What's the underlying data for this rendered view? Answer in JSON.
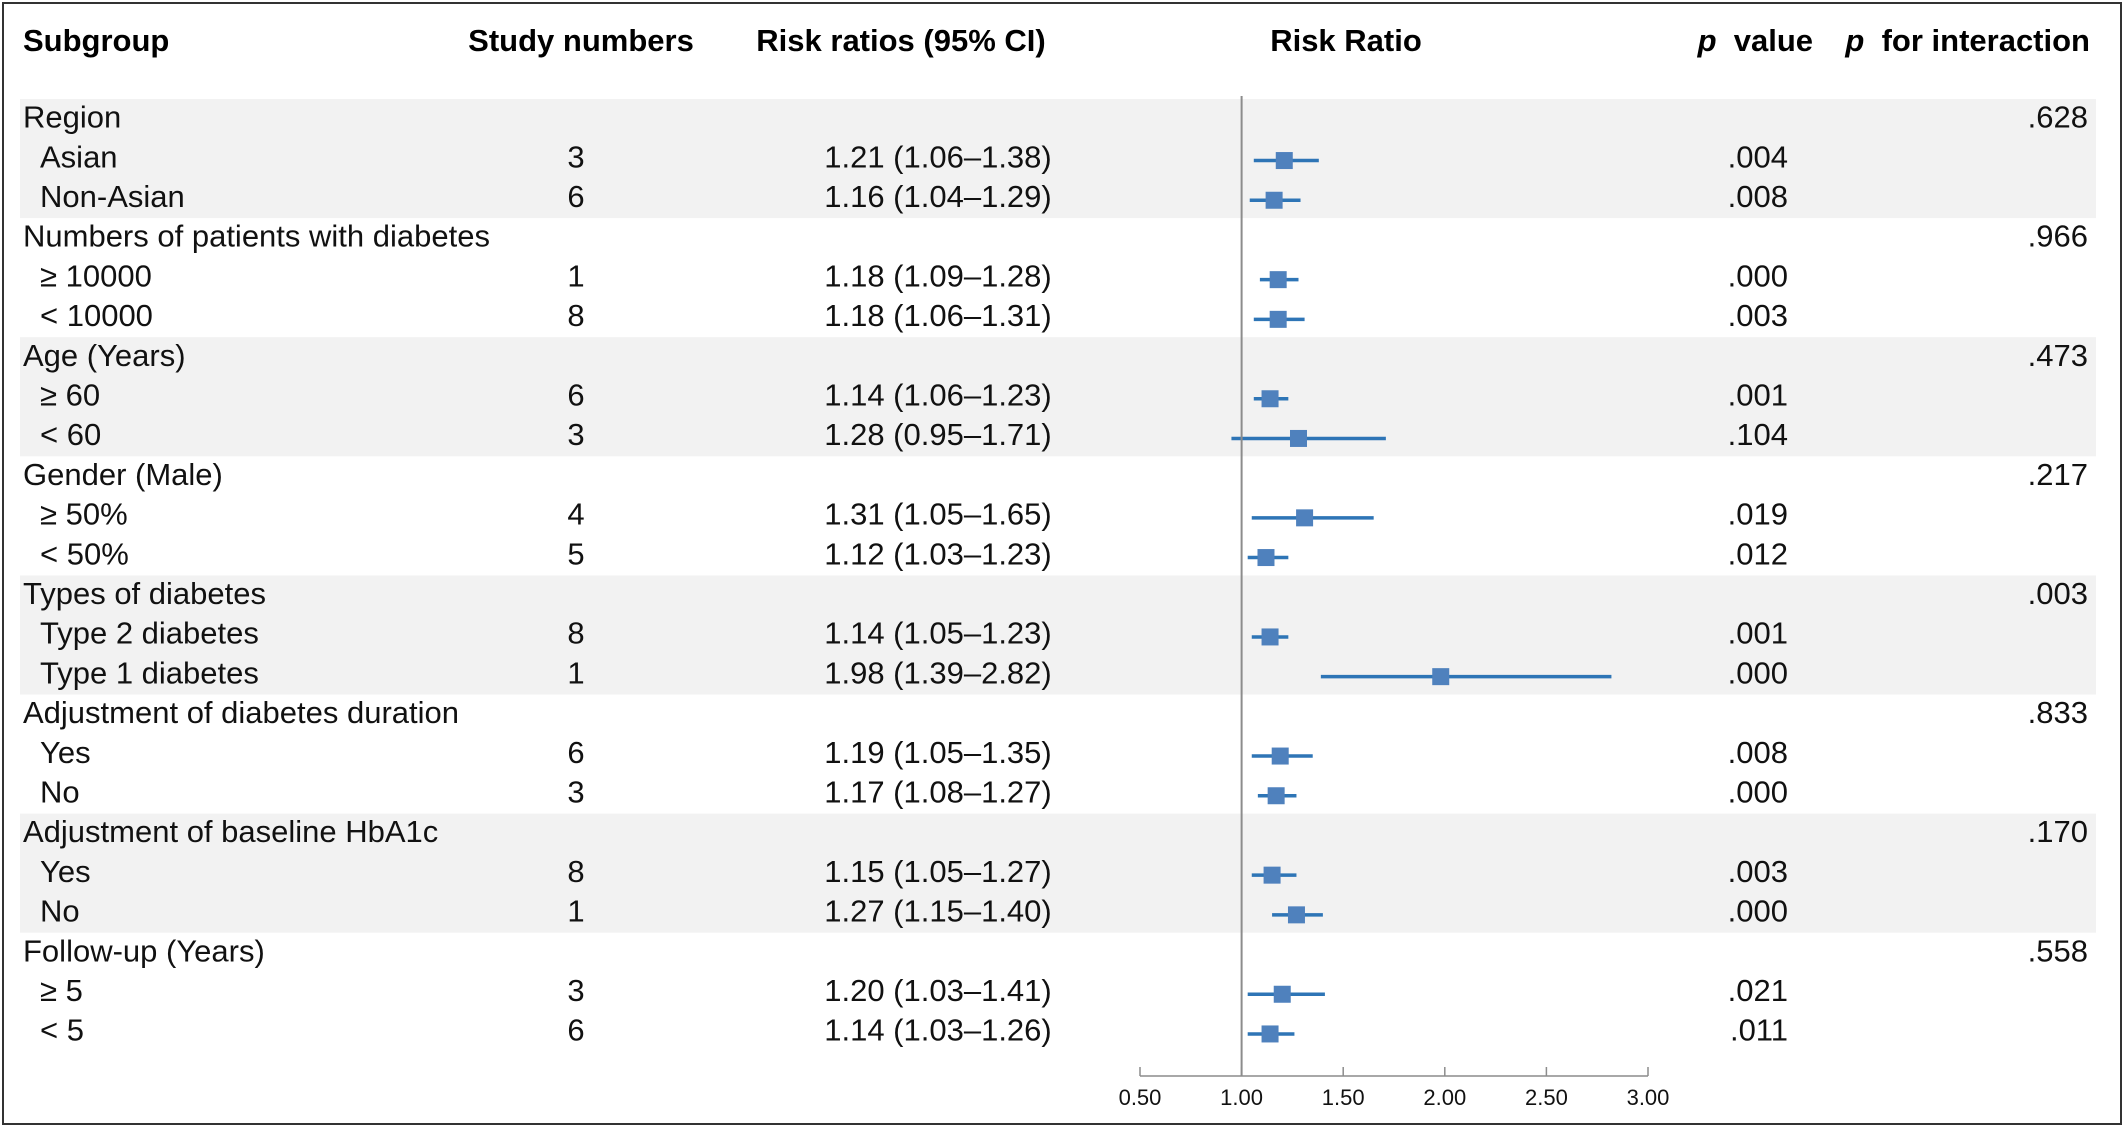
{
  "chart_data": {
    "type": "forest",
    "headers": {
      "subgroup": "Subgroup",
      "study_numbers": "Study numbers",
      "risk_ratios": "Risk ratios (95% CI)",
      "plot": "Risk Ratio",
      "p_value": "p value",
      "p_interaction": "p for interaction"
    },
    "x_axis": {
      "ticks": [
        "0.50",
        "1.00",
        "1.50",
        "2.00",
        "2.50",
        "3.00"
      ],
      "tick_values": [
        0.5,
        1.0,
        1.5,
        2.0,
        2.5,
        3.0
      ],
      "xlim": [
        0.5,
        3.0
      ],
      "reference_line": 1.0
    },
    "groups": [
      {
        "name": "Region",
        "p_interaction": ".628",
        "rows": [
          {
            "label": "Asian",
            "n": "3",
            "text": "1.21 (1.06–1.38)",
            "rr": 1.21,
            "lo": 1.06,
            "hi": 1.38,
            "p": ".004"
          },
          {
            "label": "Non-Asian",
            "n": "6",
            "text": "1.16 (1.04–1.29)",
            "rr": 1.16,
            "lo": 1.04,
            "hi": 1.29,
            "p": ".008"
          }
        ]
      },
      {
        "name": "Numbers of patients with diabetes",
        "p_interaction": ".966",
        "rows": [
          {
            "label": "≥ 10000",
            "n": "1",
            "text": "1.18 (1.09–1.28)",
            "rr": 1.18,
            "lo": 1.09,
            "hi": 1.28,
            "p": ".000"
          },
          {
            "label": "< 10000",
            "n": "8",
            "text": "1.18 (1.06–1.31)",
            "rr": 1.18,
            "lo": 1.06,
            "hi": 1.31,
            "p": ".003"
          }
        ]
      },
      {
        "name": "Age (Years)",
        "p_interaction": ".473",
        "rows": [
          {
            "label": "≥ 60",
            "n": "6",
            "text": "1.14 (1.06–1.23)",
            "rr": 1.14,
            "lo": 1.06,
            "hi": 1.23,
            "p": ".001"
          },
          {
            "label": "< 60",
            "n": "3",
            "text": "1.28 (0.95–1.71)",
            "rr": 1.28,
            "lo": 0.95,
            "hi": 1.71,
            "p": ".104"
          }
        ]
      },
      {
        "name": "Gender (Male)",
        "p_interaction": ".217",
        "rows": [
          {
            "label": "≥ 50%",
            "n": "4",
            "text": "1.31 (1.05–1.65)",
            "rr": 1.31,
            "lo": 1.05,
            "hi": 1.65,
            "p": ".019"
          },
          {
            "label": "< 50%",
            "n": "5",
            "text": "1.12 (1.03–1.23)",
            "rr": 1.12,
            "lo": 1.03,
            "hi": 1.23,
            "p": ".012"
          }
        ]
      },
      {
        "name": "Types of diabetes",
        "p_interaction": ".003",
        "rows": [
          {
            "label": "Type 2 diabetes",
            "n": "8",
            "text": "1.14 (1.05–1.23)",
            "rr": 1.14,
            "lo": 1.05,
            "hi": 1.23,
            "p": ".001"
          },
          {
            "label": "Type 1 diabetes",
            "n": "1",
            "text": "1.98 (1.39–2.82)",
            "rr": 1.98,
            "lo": 1.39,
            "hi": 2.82,
            "p": ".000"
          }
        ]
      },
      {
        "name": "Adjustment of diabetes duration",
        "p_interaction": ".833",
        "rows": [
          {
            "label": "Yes",
            "n": "6",
            "text": "1.19 (1.05–1.35)",
            "rr": 1.19,
            "lo": 1.05,
            "hi": 1.35,
            "p": ".008"
          },
          {
            "label": "No",
            "n": "3",
            "text": "1.17 (1.08–1.27)",
            "rr": 1.17,
            "lo": 1.08,
            "hi": 1.27,
            "p": ".000"
          }
        ]
      },
      {
        "name": "Adjustment of baseline HbA1c",
        "p_interaction": ".170",
        "rows": [
          {
            "label": "Yes",
            "n": "8",
            "text": "1.15 (1.05–1.27)",
            "rr": 1.15,
            "lo": 1.05,
            "hi": 1.27,
            "p": ".003"
          },
          {
            "label": "No",
            "n": "1",
            "text": "1.27 (1.15–1.40)",
            "rr": 1.27,
            "lo": 1.15,
            "hi": 1.4,
            "p": ".000"
          }
        ]
      },
      {
        "name": "Follow-up (Years)",
        "p_interaction": ".558",
        "rows": [
          {
            "label": "≥ 5",
            "n": "3",
            "text": "1.20 (1.03–1.41)",
            "rr": 1.2,
            "lo": 1.03,
            "hi": 1.41,
            "p": ".021"
          },
          {
            "label": "< 5",
            "n": "6",
            "text": "1.14 (1.03–1.26)",
            "rr": 1.14,
            "lo": 1.03,
            "hi": 1.26,
            "p": ".011"
          }
        ]
      }
    ],
    "colors": {
      "marker": "#4f81bd",
      "ci_line": "#2e75b6",
      "band": "#f2f2f2",
      "ref_line": "#8c8c8c",
      "axis": "#8c8c8c",
      "text": "#111111"
    }
  }
}
